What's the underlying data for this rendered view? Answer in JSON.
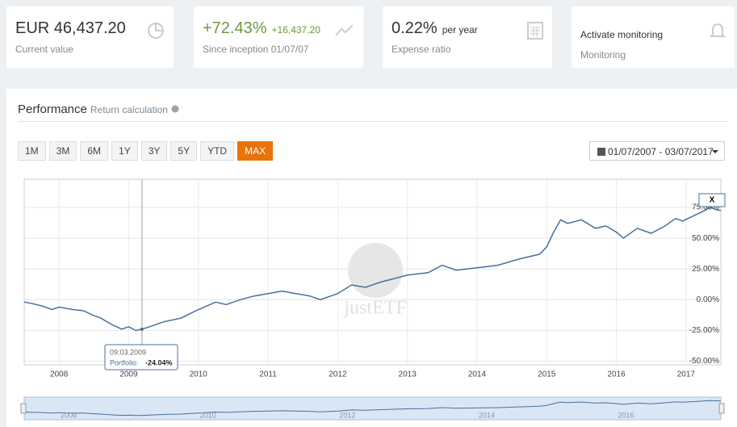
{
  "cards": [
    {
      "value": "EUR 46,437.20",
      "label": "Current value"
    },
    {
      "value": "+72.43%",
      "extra": "+16,437.20",
      "label": "Since inception 01/07/07"
    },
    {
      "value": "0.22%",
      "extra": "per year",
      "label": "Expense ratio"
    },
    {
      "value": "Activate monitoring",
      "label": "Monitoring"
    }
  ],
  "performance": {
    "title": "Performance",
    "subtitle": "Return calculation",
    "buttons": [
      "1M",
      "3M",
      "6M",
      "1Y",
      "3Y",
      "5Y",
      "YTD",
      "MAX"
    ],
    "active": "MAX",
    "date_range": "01/07/2007 - 03/07/2017",
    "close": "X",
    "watermark": "justETF"
  },
  "chart_data": {
    "type": "line",
    "xlim": [
      2007.5,
      2017.5
    ],
    "xticks": [
      2008,
      2009,
      2010,
      2011,
      2012,
      2013,
      2014,
      2015,
      2016,
      2017
    ],
    "ylim": [
      -53,
      98
    ],
    "yticks": [
      {
        "value": 75,
        "label": "75.00%"
      },
      {
        "value": 50,
        "label": "50.00%"
      },
      {
        "value": 25,
        "label": "25.00%"
      },
      {
        "value": 0,
        "label": "0.00%"
      },
      {
        "value": -25,
        "label": "-25.00%"
      },
      {
        "value": -50,
        "label": "-50.00%"
      }
    ],
    "grid": true,
    "series": [
      {
        "name": "Portfolio",
        "color": "#4a6f9c",
        "x": [
          2007.5,
          2007.6,
          2007.75,
          2007.9,
          2008.0,
          2008.2,
          2008.35,
          2008.5,
          2008.6,
          2008.75,
          2008.9,
          2009.0,
          2009.1,
          2009.19,
          2009.3,
          2009.5,
          2009.75,
          2010.0,
          2010.25,
          2010.4,
          2010.6,
          2010.8,
          2011.0,
          2011.2,
          2011.4,
          2011.6,
          2011.75,
          2012.0,
          2012.2,
          2012.4,
          2012.6,
          2012.8,
          2013.0,
          2013.3,
          2013.5,
          2013.7,
          2014.0,
          2014.3,
          2014.6,
          2014.9,
          2015.0,
          2015.1,
          2015.2,
          2015.3,
          2015.5,
          2015.7,
          2015.85,
          2016.0,
          2016.1,
          2016.3,
          2016.5,
          2016.7,
          2016.85,
          2016.95,
          2017.1,
          2017.25,
          2017.35,
          2017.45,
          2017.5
        ],
        "values": [
          -2,
          -3,
          -5,
          -8,
          -6,
          -8,
          -9,
          -13,
          -15,
          -20,
          -24,
          -22,
          -25,
          -24.04,
          -22,
          -18,
          -15,
          -8,
          -2,
          -4,
          0,
          3,
          5,
          7,
          5,
          3,
          0,
          5,
          12,
          10,
          14,
          17,
          20,
          22,
          28,
          24,
          26,
          28,
          33,
          37,
          43,
          55,
          65,
          62,
          65,
          58,
          60,
          55,
          50,
          58,
          54,
          60,
          66,
          64,
          68,
          72,
          75,
          73,
          72.43
        ]
      }
    ],
    "tooltip": {
      "date": "09.03.2009",
      "series": "Portfolio:",
      "x": 2009.19,
      "value": -24.04,
      "value_label": "-24.04%"
    }
  }
}
